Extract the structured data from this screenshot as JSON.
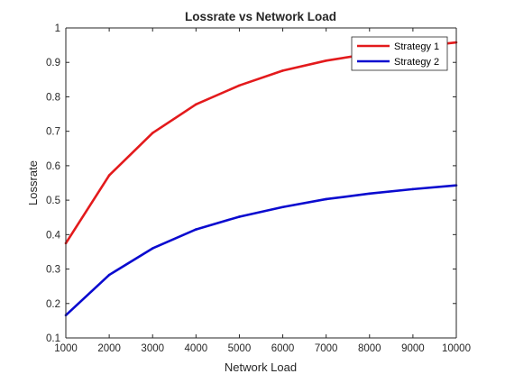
{
  "chart_data": {
    "type": "line",
    "title": "Lossrate vs Network Load",
    "xlabel": "Network Load",
    "ylabel": "Lossrate",
    "x": [
      1000,
      2000,
      3000,
      4000,
      5000,
      6000,
      7000,
      8000,
      9000,
      10000
    ],
    "xlim": [
      1000,
      10000
    ],
    "ylim": [
      0.1,
      1
    ],
    "xticks": [
      "1000",
      "2000",
      "3000",
      "4000",
      "5000",
      "6000",
      "7000",
      "8000",
      "9000",
      "10000"
    ],
    "yticks": [
      "0.1",
      "0.2",
      "0.3",
      "0.4",
      "0.5",
      "0.6",
      "0.7",
      "0.8",
      "0.9",
      "1"
    ],
    "grid": false,
    "legend_position": "top-right",
    "series": [
      {
        "name": "Strategy 1",
        "color": "#e31a1c",
        "values": [
          0.375,
          0.572,
          0.695,
          0.778,
          0.833,
          0.876,
          0.905,
          0.925,
          0.944,
          0.958
        ]
      },
      {
        "name": "Strategy 2",
        "color": "#0a0acf",
        "values": [
          0.166,
          0.283,
          0.36,
          0.415,
          0.452,
          0.48,
          0.503,
          0.519,
          0.532,
          0.543
        ]
      }
    ]
  }
}
